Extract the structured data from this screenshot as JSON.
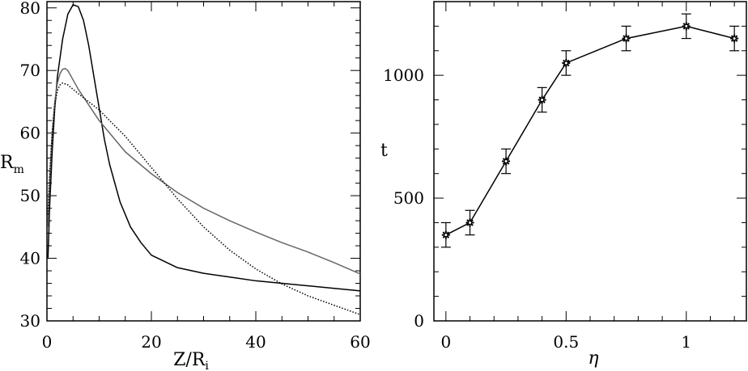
{
  "chart_data": [
    {
      "type": "line",
      "title": "",
      "xlabel": "Z/R",
      "xlabel_sub": "i",
      "ylabel": "R",
      "ylabel_sub": "m",
      "xlim": [
        0,
        60
      ],
      "ylim": [
        30,
        81
      ],
      "xticks": [
        0,
        20,
        40,
        60
      ],
      "yticks": [
        30,
        40,
        50,
        60,
        70,
        80
      ],
      "grid": false,
      "legend": "none",
      "series": [
        {
          "style": "solid",
          "color": "#000000",
          "x": [
            0.2,
            0.5,
            1,
            1.5,
            2,
            3,
            4,
            5,
            6,
            7,
            8,
            9,
            10,
            11,
            12,
            14,
            16,
            18,
            20,
            25,
            30,
            35,
            40,
            45,
            50,
            55,
            60
          ],
          "y": [
            40,
            48,
            57,
            64,
            69,
            75,
            79,
            80.5,
            80.2,
            78,
            74,
            69,
            64,
            59,
            55,
            49,
            45,
            42.5,
            40.5,
            38.5,
            37.6,
            37,
            36.4,
            36,
            35.6,
            35.2,
            34.8
          ]
        },
        {
          "style": "solid",
          "color": "#666666",
          "x": [
            0.2,
            0.5,
            1,
            1.5,
            2,
            2.5,
            3,
            3.5,
            4,
            5,
            6,
            8,
            10,
            12,
            15,
            20,
            25,
            30,
            35,
            40,
            45,
            50,
            55,
            60
          ],
          "y": [
            45,
            52,
            60,
            65,
            68,
            69.5,
            70.2,
            70.3,
            70,
            68.5,
            67,
            64.5,
            62,
            60,
            57,
            53.5,
            50.5,
            48,
            46,
            44.2,
            42.5,
            41,
            39.3,
            37.5
          ]
        },
        {
          "style": "dotted",
          "color": "#000000",
          "x": [
            0.2,
            0.5,
            1,
            1.5,
            2,
            2.5,
            3,
            4,
            5,
            6,
            8,
            10,
            12,
            15,
            18,
            20,
            25,
            30,
            35,
            40,
            45,
            50,
            55,
            60
          ],
          "y": [
            47,
            53,
            60,
            64.5,
            66.8,
            67.7,
            68,
            67.7,
            67,
            66.3,
            65,
            63.7,
            62,
            59.5,
            56.5,
            54.5,
            49.5,
            45,
            41.3,
            38.3,
            35.9,
            34,
            32.5,
            31
          ]
        }
      ]
    },
    {
      "type": "line",
      "title": "",
      "xlabel": "η",
      "ylabel": "t",
      "xlim": [
        -0.05,
        1.25
      ],
      "ylim": [
        0,
        1300
      ],
      "xticks": [
        0,
        0.5,
        1
      ],
      "xtick_labels": [
        "0",
        "0.5",
        "1"
      ],
      "yticks": [
        0,
        500,
        1000
      ],
      "grid": false,
      "legend": "none",
      "series": [
        {
          "style": "solid-with-markers",
          "color": "#000000",
          "marker": "star",
          "x": [
            0,
            0.1,
            0.25,
            0.4,
            0.5,
            0.75,
            1.0,
            1.2
          ],
          "y": [
            350,
            400,
            650,
            900,
            1050,
            1150,
            1200,
            1150
          ],
          "error": [
            50,
            50,
            50,
            50,
            50,
            50,
            50,
            50
          ]
        }
      ]
    }
  ]
}
